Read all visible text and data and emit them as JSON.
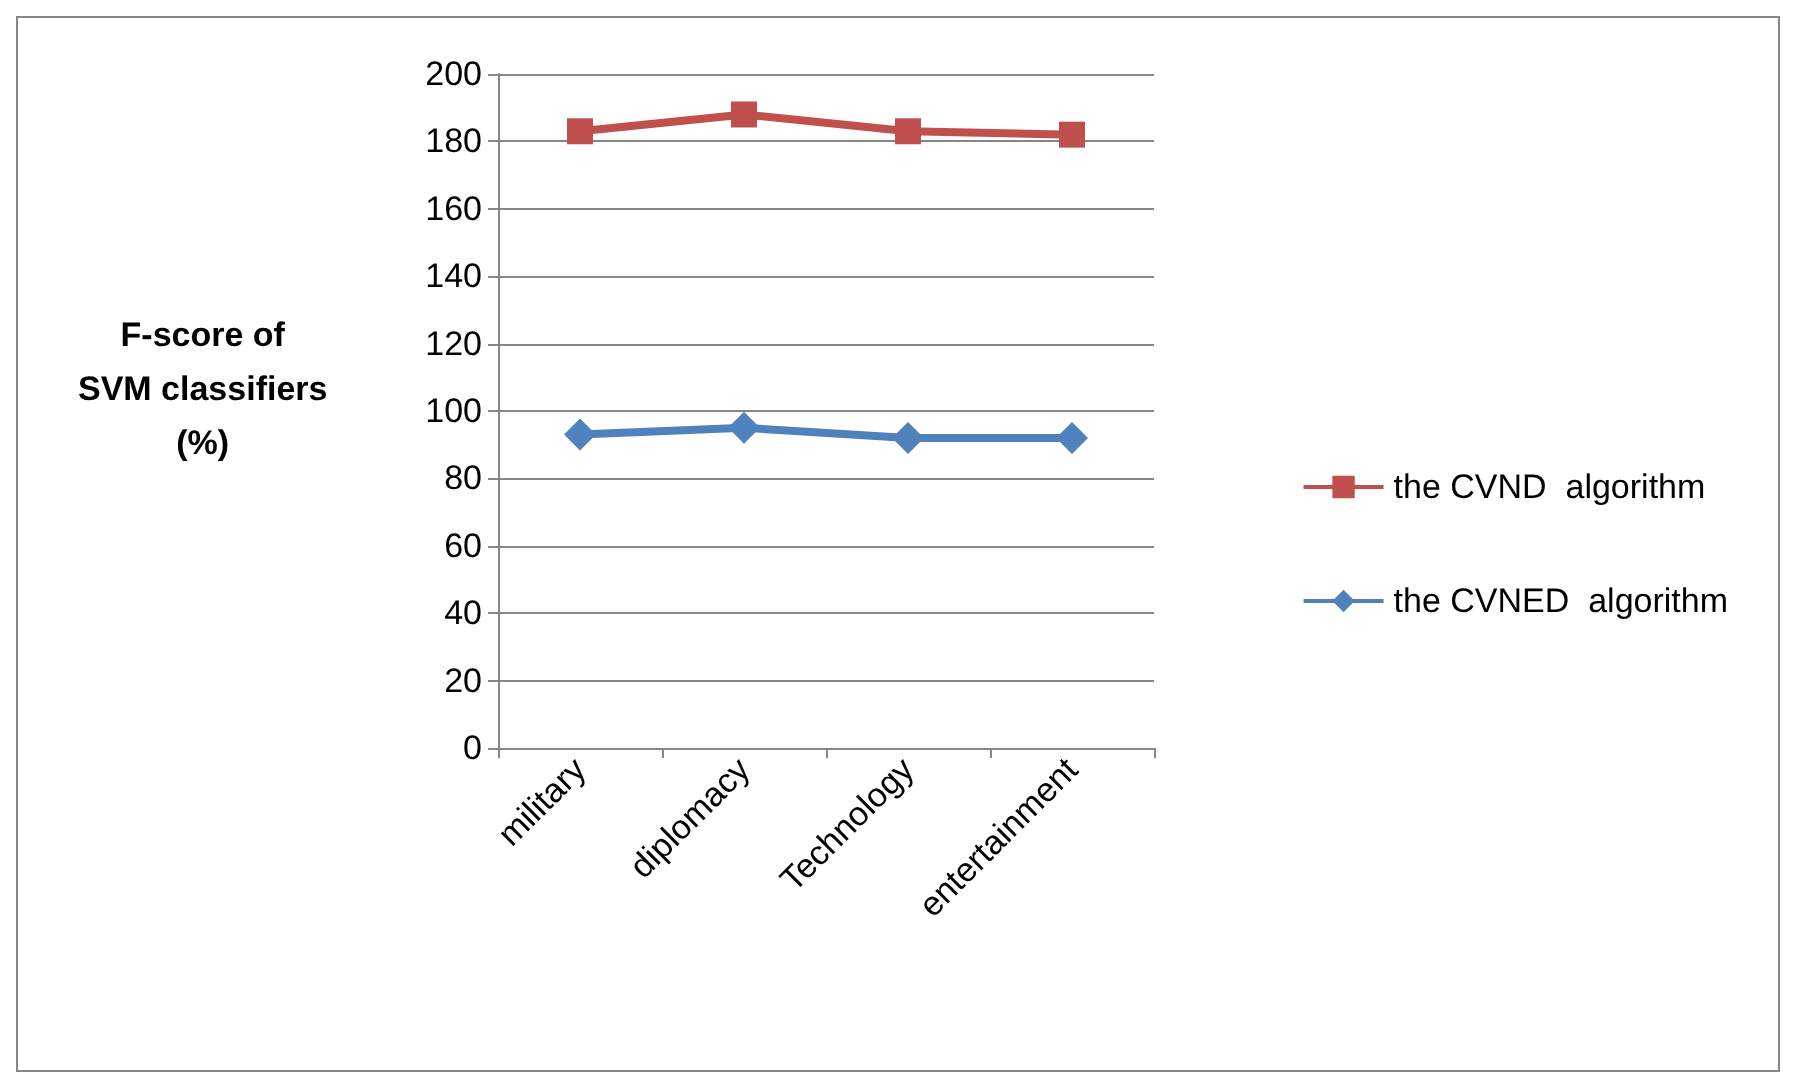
{
  "chart_data": {
    "type": "line",
    "ylabel": "F-score of\nSVM classifiers\n(%)",
    "categories": [
      "military",
      "diplomacy",
      "Technology",
      "entertainment"
    ],
    "series": [
      {
        "name": "the CVND  algorithm",
        "color": "#c0504d",
        "marker": "square",
        "values": [
          183,
          188,
          183,
          182
        ]
      },
      {
        "name": "the CVNED  algorithm",
        "color": "#4f81bd",
        "marker": "diamond",
        "values": [
          93,
          95,
          92,
          92
        ]
      }
    ],
    "ylim": [
      0,
      200
    ],
    "yticks": [
      0,
      20,
      40,
      60,
      80,
      100,
      120,
      140,
      160,
      180,
      200
    ],
    "grid": "y",
    "legend": "right"
  }
}
